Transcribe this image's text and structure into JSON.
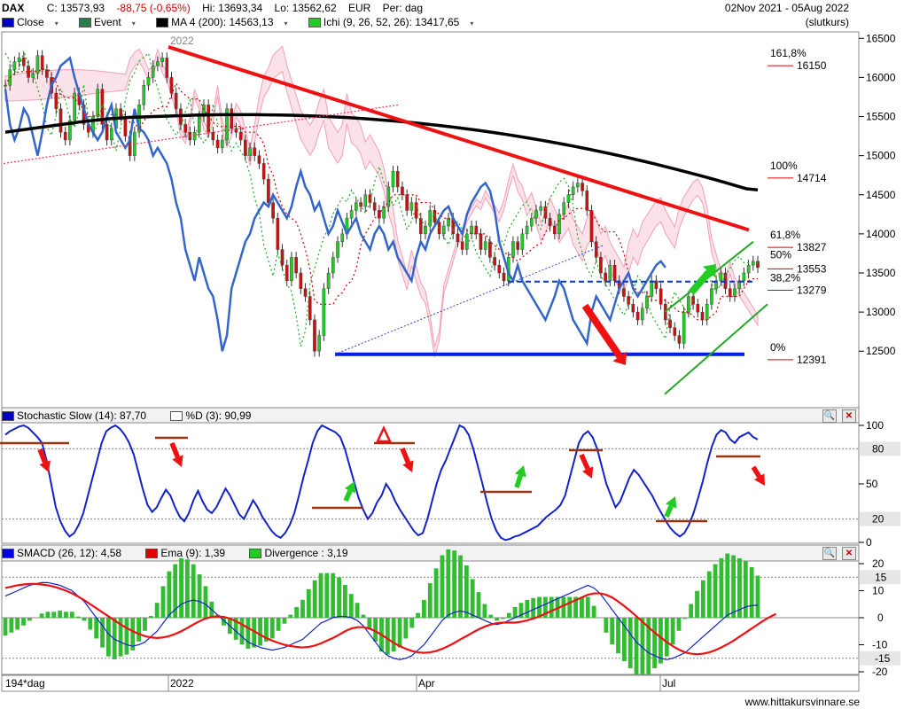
{
  "header": {
    "symbol": "DAX",
    "close": "C: 13573,93",
    "change": "-88,75 (-0,65%)",
    "high": "Hi: 13693,34",
    "low": "Lo: 13562,62",
    "currency": "EUR",
    "period": "Per: dag",
    "date_range": "02Nov 2021 - 05Aug 2022",
    "basis": "(slutkurs)",
    "change_color": "#d00000"
  },
  "legend": {
    "close": "Close",
    "event": "Event",
    "ma": "MA 4 (200): 14563,13",
    "ichi": "Ichi (9, 26, 52, 26): 13417,65",
    "stoch": "Stochastic Slow (14): 87,70",
    "pd": "%D (3): 90,99",
    "smacd": "SMACD (26, 12): 4,58",
    "ema": "Ema (9): 1,39",
    "divergence": "Divergence : 3,19"
  },
  "footer": {
    "bars": "194*dag",
    "website": "www.hittakursvinnare.se"
  },
  "annotations": {
    "year_label": "2022",
    "fibs": [
      {
        "pct": "161,8%",
        "value": "16150",
        "price": 16150
      },
      {
        "pct": "100%",
        "value": "14714",
        "price": 14714
      },
      {
        "pct": "61,8%",
        "value": "13827",
        "price": 13827
      },
      {
        "pct": "50%",
        "value": "13553",
        "price": 13553
      },
      {
        "pct": "38,2%",
        "value": "13279",
        "price": 13279
      },
      {
        "pct": "0%",
        "value": "12391",
        "price": 12391
      }
    ]
  },
  "chart_data": [
    {
      "type": "line",
      "panel": "price",
      "x_labels": [
        "2022",
        "Apr",
        "Jul"
      ],
      "y_ticks": [
        12500,
        13000,
        13500,
        14000,
        14500,
        15000,
        15500,
        16000,
        16500
      ],
      "ylim": [
        11800,
        16560
      ],
      "close_series": [
        15900,
        16100,
        16200,
        16250,
        16150,
        16000,
        16050,
        16280,
        16100,
        16000,
        15800,
        15600,
        15300,
        15200,
        15450,
        15800,
        15650,
        15400,
        15300,
        15500,
        15850,
        15400,
        15200,
        15350,
        15600,
        15500,
        15250,
        15000,
        15300,
        15650,
        15900,
        16000,
        16150,
        16200,
        16250,
        16000,
        15800,
        15600,
        15400,
        15300,
        15200,
        15300,
        15500,
        15650,
        15300,
        15200,
        15100,
        15200,
        15600,
        15350,
        15300,
        15200,
        15000,
        15100,
        15000,
        14900,
        14700,
        14400,
        14200,
        13800,
        13600,
        13400,
        13700,
        13500,
        13300,
        13200,
        12900,
        12500,
        12700,
        13300,
        13500,
        13700,
        13900,
        14000,
        14200,
        14300,
        14400,
        14350,
        14500,
        14400,
        14300,
        14200,
        14350,
        14600,
        14800,
        14600,
        14500,
        14300,
        14400,
        14200,
        14000,
        14100,
        14300,
        14150,
        14000,
        14100,
        14200,
        14000,
        13900,
        13800,
        14000,
        14100,
        14000,
        13800,
        13900,
        13700,
        13600,
        13500,
        13400,
        13700,
        13900,
        13800,
        14000,
        14100,
        14200,
        14300,
        14350,
        14200,
        14100,
        14000,
        14250,
        14400,
        14500,
        14600,
        14650,
        14550,
        14300,
        13900,
        13700,
        13500,
        13400,
        13600,
        13400,
        13300,
        13200,
        13100,
        13000,
        12900,
        13050,
        13200,
        13400,
        13300,
        13100,
        12900,
        12800,
        12700,
        12600,
        13000,
        13200,
        13100,
        13000,
        12900,
        13100,
        13300,
        13400,
        13500,
        13300,
        13200,
        13300,
        13400,
        13500,
        13600,
        13650,
        13570
      ],
      "ma200": [
        15300,
        15320,
        15340,
        15360,
        15380,
        15400,
        15420,
        15440,
        15455,
        15470,
        15480,
        15490,
        15495,
        15500,
        15505,
        15510,
        15515,
        15520,
        15522,
        15524,
        15525,
        15525,
        15524,
        15522,
        15520,
        15517,
        15513,
        15508,
        15502,
        15495,
        15487,
        15478,
        15468,
        15457,
        15445,
        15432,
        15418,
        15403,
        15387,
        15370,
        15352,
        15333,
        15313,
        15292,
        15270,
        15247,
        15223,
        15198,
        15172,
        15145,
        15117,
        15088,
        15058,
        15027,
        14995,
        14962,
        14928,
        14893,
        14857,
        14820,
        14782,
        14743,
        14703,
        14662,
        14620,
        14577,
        14563
      ],
      "resistance_line": {
        "from": [
          0,
          16300
        ],
        "to": [
          193,
          14050
        ]
      },
      "support_line": {
        "value": 12460
      },
      "dashed_level": {
        "value": 13390
      }
    },
    {
      "type": "line",
      "panel": "stochastic",
      "y_ticks": [
        0,
        20,
        50,
        80,
        100
      ],
      "ylim": [
        0,
        100
      ],
      "levels": [
        20,
        80
      ],
      "values": [
        92,
        95,
        97,
        99,
        100,
        98,
        94,
        90,
        85,
        70,
        50,
        30,
        18,
        10,
        5,
        8,
        15,
        25,
        40,
        55,
        70,
        85,
        95,
        98,
        100,
        97,
        92,
        85,
        75,
        60,
        45,
        32,
        26,
        30,
        38,
        45,
        40,
        30,
        22,
        18,
        25,
        36,
        44,
        35,
        28,
        25,
        30,
        38,
        46,
        40,
        32,
        24,
        20,
        28,
        36,
        30,
        22,
        16,
        10,
        6,
        4,
        8,
        15,
        25,
        40,
        56,
        70,
        85,
        95,
        100,
        98,
        96,
        94,
        90,
        80,
        66,
        52,
        38,
        28,
        20,
        25,
        34,
        40,
        50,
        44,
        35,
        28,
        22,
        16,
        10,
        6,
        8,
        20,
        35,
        50,
        62,
        70,
        80,
        90,
        100,
        98,
        92,
        80,
        65,
        50,
        34,
        20,
        10,
        4,
        2,
        3,
        5,
        6,
        8,
        10,
        12,
        14,
        18,
        22,
        25,
        28,
        32,
        40,
        55,
        70,
        85,
        92,
        95,
        90,
        80,
        65,
        50,
        40,
        30,
        35,
        45,
        55,
        62,
        58,
        52,
        46,
        40,
        32,
        25,
        18,
        12,
        8,
        5,
        8,
        15,
        25,
        38,
        52,
        68,
        82,
        92,
        96,
        94,
        88,
        85,
        90,
        92,
        94,
        90,
        88
      ]
    },
    {
      "type": "bar",
      "panel": "smacd",
      "y_ticks": [
        -20,
        -15,
        -10,
        0,
        10,
        15,
        20
      ],
      "ylim": [
        -20,
        20
      ],
      "levels": [
        15,
        -15
      ],
      "smacd": [
        8,
        9,
        10,
        11,
        12,
        12.5,
        13,
        13,
        12.5,
        12,
        11,
        10,
        8,
        6,
        3,
        0,
        -3,
        -6,
        -8,
        -9,
        -10,
        -10.5,
        -10,
        -9,
        -7,
        -5,
        -2,
        1,
        3,
        5,
        6,
        6.5,
        6,
        5,
        3,
        1,
        -1,
        -3,
        -5,
        -7,
        -9,
        -10,
        -11,
        -11.5,
        -12,
        -11.5,
        -11,
        -10,
        -9,
        -8,
        -6,
        -4,
        -2,
        -1,
        0,
        0.5,
        0.5,
        0,
        -1,
        -3,
        -6,
        -9,
        -12,
        -14,
        -15,
        -15.5,
        -15,
        -14,
        -12,
        -10,
        -7,
        -4,
        -1,
        1,
        2,
        2.5,
        2,
        1,
        0,
        -1,
        -2,
        -2.5,
        -2,
        -1,
        0,
        1,
        2,
        3,
        4,
        5,
        6,
        7,
        8,
        9,
        10,
        11,
        12,
        11,
        9,
        6,
        3,
        0,
        -3,
        -6,
        -9,
        -11,
        -13,
        -14,
        -15,
        -15.5,
        -15,
        -14,
        -13,
        -11,
        -9,
        -7,
        -5,
        -3,
        -1,
        1,
        2,
        3,
        4,
        4.5,
        4.58
      ],
      "ema": [
        11,
        11.5,
        12,
        12.3,
        12.5,
        12.5,
        12.3,
        12,
        11.5,
        10.8,
        10,
        9,
        7.8,
        6.5,
        5,
        3.5,
        2,
        0.5,
        -1,
        -2.5,
        -3.8,
        -5,
        -6,
        -6.8,
        -7.3,
        -7.5,
        -7.3,
        -6.8,
        -6,
        -5,
        -3.8,
        -2.5,
        -1.3,
        -0.3,
        0.3,
        0.5,
        0.3,
        -0.3,
        -1.3,
        -2.5,
        -3.8,
        -5,
        -6.3,
        -7.5,
        -8.5,
        -9.3,
        -10,
        -10.5,
        -10.8,
        -11,
        -10.8,
        -10.3,
        -9.5,
        -8.5,
        -7.5,
        -6.3,
        -5,
        -4,
        -3.5,
        -3.5,
        -4,
        -5,
        -6.3,
        -7.8,
        -9.3,
        -10.5,
        -11.5,
        -12.3,
        -12.8,
        -13,
        -12.8,
        -12.3,
        -11.5,
        -10.5,
        -9.3,
        -8,
        -6.8,
        -5.5,
        -4.3,
        -3.3,
        -2.5,
        -2,
        -1.8,
        -1.8,
        -1.8,
        -1.5,
        -1,
        -0.3,
        0.5,
        1.5,
        2.5,
        3.5,
        4.5,
        5.5,
        6.5,
        7.5,
        8.5,
        9,
        9,
        8.5,
        7.5,
        6,
        4.3,
        2.5,
        0.5,
        -1.5,
        -3.5,
        -5.5,
        -7.3,
        -9,
        -10.5,
        -11.8,
        -12.8,
        -13.3,
        -13.5,
        -13.3,
        -12.8,
        -12,
        -11,
        -9.8,
        -8.5,
        -7,
        -5.5,
        -4,
        -2.5,
        -1,
        0.3,
        1.39
      ]
    }
  ]
}
